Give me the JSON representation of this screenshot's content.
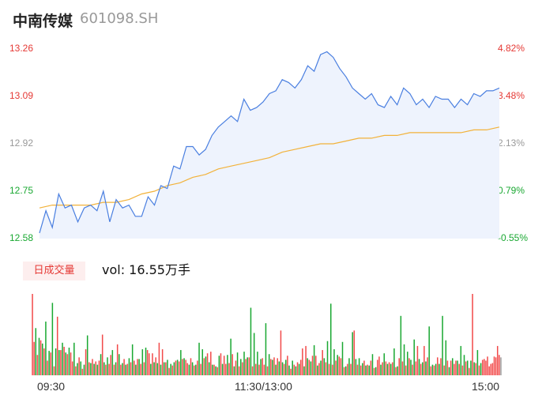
{
  "header": {
    "name": "中南传媒",
    "code": "601098.SH"
  },
  "badge": {
    "label": "日成交量"
  },
  "volume_text": "vol: 16.55万手",
  "colors": {
    "price_line": "#4a7fe0",
    "avg_line": "#f2b23a",
    "up": "#f24a4a",
    "down": "#1aa832",
    "flat": "#999999",
    "area": "#eef3fd"
  },
  "chart_data": [
    {
      "type": "line",
      "ylim": [
        12.58,
        13.26
      ],
      "price_ticks": [
        "13.26",
        "13.09",
        "12.92",
        "12.75",
        "12.58"
      ],
      "pct_ticks": [
        "4.82%",
        "3.48%",
        "2.13%",
        "0.79%",
        "-0.55%"
      ],
      "x_ticks": [
        "09:30",
        "11:30/13:00",
        "15:00"
      ],
      "series": [
        {
          "values": [
            12.6,
            12.68,
            12.62,
            12.74,
            12.69,
            12.7,
            12.64,
            12.69,
            12.7,
            12.68,
            12.75,
            12.64,
            12.72,
            12.69,
            12.7,
            12.66,
            12.66,
            12.73,
            12.7,
            12.77,
            12.76,
            12.84,
            12.83,
            12.91,
            12.91,
            12.88,
            12.9,
            12.95,
            12.98,
            13.0,
            13.02,
            13.0,
            13.08,
            13.04,
            13.05,
            13.07,
            13.1,
            13.11,
            13.15,
            13.14,
            13.12,
            13.15,
            13.2,
            13.18,
            13.24,
            13.25,
            13.23,
            13.19,
            13.16,
            13.12,
            13.1,
            13.08,
            13.1,
            13.06,
            13.05,
            13.09,
            13.06,
            13.12,
            13.1,
            13.06,
            13.08,
            13.05,
            13.09,
            13.08,
            13.08,
            13.05,
            13.08,
            13.06,
            13.1,
            13.09,
            13.11,
            13.11,
            13.12
          ]
        },
        {
          "values": [
            12.69,
            12.7,
            12.7,
            12.7,
            12.7,
            12.71,
            12.71,
            12.72,
            12.74,
            12.75,
            12.77,
            12.78,
            12.8,
            12.81,
            12.83,
            12.84,
            12.85,
            12.86,
            12.87,
            12.89,
            12.9,
            12.91,
            12.92,
            12.92,
            12.93,
            12.94,
            12.94,
            12.95,
            12.95,
            12.96,
            12.96,
            12.96,
            12.96,
            12.96,
            12.97,
            12.97,
            12.98
          ]
        }
      ]
    },
    {
      "type": "bar",
      "series": [
        {
          "name": "up",
          "values": [
            100,
            41,
            25,
            43,
            33,
            18,
            28,
            11,
            72,
            31,
            35,
            26,
            28,
            17,
            11,
            22,
            8,
            32,
            16,
            20,
            17,
            18,
            50,
            13,
            14,
            25,
            13,
            38,
            13,
            20,
            14,
            16,
            18,
            20,
            14,
            16,
            31,
            27,
            27,
            22,
            40,
            32,
            16,
            9,
            12,
            18,
            17,
            20,
            19,
            15,
            21,
            12,
            18,
            14,
            21,
            27,
            29,
            13,
            10,
            27,
            24,
            14,
            15,
            26,
            18,
            11,
            16,
            20,
            22,
            11,
            14,
            13,
            21,
            13,
            11,
            20,
            22,
            21,
            55,
            14,
            24,
            8,
            13,
            16,
            19,
            33,
            36,
            19,
            24,
            24,
            15,
            31,
            16,
            14,
            13,
            18,
            23,
            21,
            10,
            14,
            14,
            55,
            13,
            12,
            18,
            13,
            18,
            9,
            19,
            23,
            16,
            17,
            16,
            16,
            10,
            21,
            17,
            12,
            21,
            13,
            17,
            36,
            14,
            36,
            22,
            11,
            12,
            22,
            21,
            12,
            18,
            18,
            14,
            18,
            14,
            12,
            17,
            9,
            100,
            15,
            12,
            19,
            20,
            18,
            23,
            11,
            14,
            15,
            23,
            22,
            36,
            25
          ]
        },
        {
          "name": "down",
          "values": [
            58,
            46,
            39,
            66,
            30,
            89,
            33,
            31,
            40,
            28,
            34,
            40,
            15,
            17,
            13,
            49,
            15,
            14,
            13,
            26,
            16,
            22,
            31,
            16,
            26,
            15,
            13,
            21,
            38,
            13,
            20,
            32,
            34,
            14,
            16,
            15,
            13,
            16,
            19,
            14,
            16,
            19,
            31,
            21,
            13,
            16,
            13,
            40,
            32,
            23,
            16,
            13,
            11,
            24,
            14,
            25,
            45,
            11,
            28,
            20,
            29,
            22,
            83,
            52,
            29,
            20,
            64,
            26,
            19,
            13,
            17,
            16,
            19,
            12,
            18,
            11,
            14,
            11,
            21,
            17,
            37,
            12,
            18,
            21,
            42,
            88,
            32,
            25,
            41,
            11,
            21,
            53,
            20,
            21,
            15,
            12,
            12,
            26,
            10,
            13,
            27,
            14,
            14,
            33,
            11,
            73,
            38,
            29,
            19,
            44,
            20,
            16,
            17,
            60,
            13,
            14,
            14,
            73,
            43,
            10,
            21,
            18,
            36,
            25,
            18,
            18,
            16,
            31,
            15
          ]
        },
        {
          "name": "flat",
          "values": [
            22
          ]
        }
      ]
    }
  ]
}
